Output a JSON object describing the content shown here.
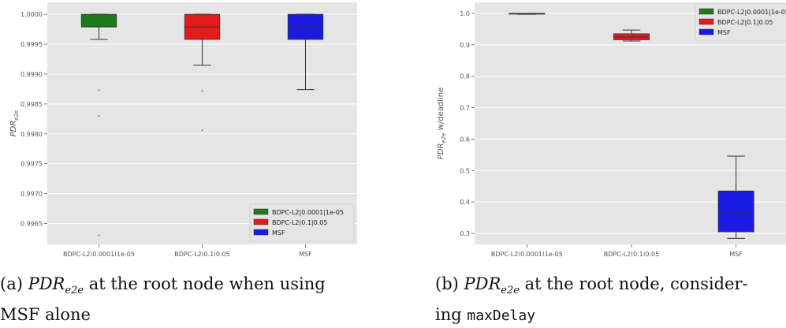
{
  "chart_data": [
    {
      "type": "box",
      "categories": [
        "BDPC-L2|0.0001|1e-05",
        "BDPC-L2|0.1|0.05",
        "MSF"
      ],
      "ylabel": "PDR_e2e",
      "ylim": [
        0.99615,
        1.0002
      ],
      "yticks": [
        "1.0000",
        "0.9995",
        "0.9990",
        "0.9985",
        "0.9980",
        "0.9975",
        "0.9970",
        "0.9965"
      ],
      "ytick_values": [
        1.0,
        0.9995,
        0.999,
        0.9985,
        0.998,
        0.9975,
        0.997,
        0.9965
      ],
      "legend": {
        "position": "lower-right",
        "entries": [
          "BDPC-L2|0.0001|1e-05",
          "BDPC-L2|0.1|0.05",
          "MSF"
        ]
      },
      "grid": true,
      "boxes": [
        {
          "name": "BDPC-L2|0.0001|1e-05",
          "color": "#1b7b1b",
          "whisker_low": 0.99958,
          "q1": 0.99979,
          "median": 0.99979,
          "q3": 1.0,
          "whisker_high": 1.0,
          "outliers": [
            0.99873,
            0.9983,
            0.9963
          ]
        },
        {
          "name": "BDPC-L2|0.1|0.05",
          "color": "#e41a1c",
          "whisker_low": 0.99915,
          "q1": 0.99958,
          "median": 0.99979,
          "q3": 1.0,
          "whisker_high": 1.0,
          "outliers": [
            0.99872,
            0.99806
          ]
        },
        {
          "name": "MSF",
          "color": "#1a1ae4",
          "whisker_low": 0.99874,
          "q1": 0.99958,
          "median": 0.99979,
          "q3": 1.0,
          "whisker_high": 1.0,
          "outliers": []
        }
      ]
    },
    {
      "type": "box",
      "categories": [
        "BDPC-L2|0.0001|1e-05",
        "BDPC-L2|0.1|0.05",
        "MSF"
      ],
      "ylabel": "PDR_e2e w/deadline",
      "ylim": [
        0.265,
        1.035
      ],
      "yticks": [
        "1.0",
        "0.9",
        "0.8",
        "0.7",
        "0.6",
        "0.5",
        "0.4",
        "0.3"
      ],
      "ytick_values": [
        1.0,
        0.9,
        0.8,
        0.7,
        0.6,
        0.5,
        0.4,
        0.3
      ],
      "legend": {
        "position": "upper-right",
        "entries": [
          "BDPC-L2|0.0001|1e-05",
          "BDPC-L2|0.1|0.05",
          "MSF"
        ]
      },
      "grid": true,
      "boxes": [
        {
          "name": "BDPC-L2|0.0001|1e-05",
          "color": "#1b7b1b",
          "whisker_low": 0.997,
          "q1": 0.998,
          "median": 0.999,
          "q3": 1.0,
          "whisker_high": 1.0,
          "outliers": []
        },
        {
          "name": "BDPC-L2|0.1|0.05",
          "color": "#e41a1c",
          "whisker_low": 0.912,
          "q1": 0.916,
          "median": 0.925,
          "q3": 0.935,
          "whisker_high": 0.947,
          "outliers": []
        },
        {
          "name": "MSF",
          "color": "#1a1ae4",
          "whisker_low": 0.284,
          "q1": 0.305,
          "median": 0.368,
          "q3": 0.435,
          "whisker_high": 0.546,
          "outliers": []
        }
      ]
    }
  ],
  "captions": {
    "a": {
      "prefix": "(a) ",
      "math": "PDR",
      "sub": "e2e",
      "rest_line1": " at the root node when using",
      "line2": "MSF alone"
    },
    "b": {
      "prefix": "(b) ",
      "math": "PDR",
      "sub": "e2e",
      "rest_line1": " at the root node, consider-",
      "line2_text": "ing ",
      "line2_mono": "maxDelay"
    }
  }
}
